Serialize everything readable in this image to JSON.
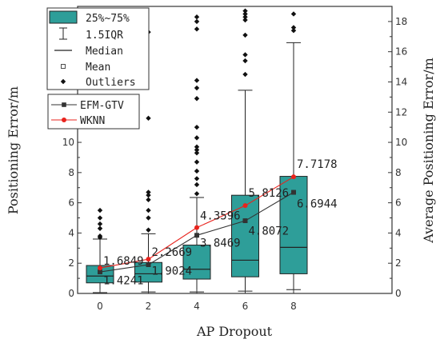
{
  "chart_data": {
    "type": "box",
    "xlabel": "AP Dropout",
    "ylabel_left": "Positioning Error/m",
    "ylabel_right": "Average Positioning Error/m",
    "categories": [
      "0",
      "2",
      "4",
      "6",
      "8"
    ],
    "ylim": [
      0,
      19
    ],
    "yticks": [
      "0",
      "2",
      "4",
      "6",
      "8",
      "10",
      "12",
      "14",
      "16",
      "18"
    ],
    "box_color": "#2E9E99",
    "boxes": [
      {
        "cat": "0",
        "whisker_low": 0.05,
        "q1": 0.7,
        "median": 1.15,
        "q3": 1.85,
        "whisker_high": 3.6,
        "mean": 1.42,
        "outliers": [
          3.7,
          3.8,
          4.3,
          4.6,
          5.0,
          5.5
        ]
      },
      {
        "cat": "2",
        "whisker_low": 0.1,
        "q1": 0.75,
        "median": 1.3,
        "q3": 2.05,
        "whisker_high": 3.95,
        "mean": 1.9,
        "outliers": [
          4.2,
          5.0,
          5.5,
          6.2,
          6.5,
          6.7,
          11.6,
          17.3
        ]
      },
      {
        "cat": "4",
        "whisker_low": 0.1,
        "q1": 0.95,
        "median": 1.6,
        "q3": 3.2,
        "whisker_high": 6.35,
        "mean": 3.85,
        "outliers": [
          6.6,
          7.2,
          7.6,
          8.1,
          8.7,
          9.3,
          9.5,
          9.7,
          10.3,
          11.0,
          12.9,
          13.6,
          14.1,
          17.5,
          18.0,
          18.3
        ]
      },
      {
        "cat": "6",
        "whisker_low": 0.15,
        "q1": 1.1,
        "median": 2.2,
        "q3": 6.5,
        "whisker_high": 13.45,
        "mean": 4.81,
        "outliers": [
          14.5,
          15.4,
          15.8,
          17.1,
          18.1,
          18.3,
          18.5,
          18.7
        ]
      },
      {
        "cat": "8",
        "whisker_low": 0.25,
        "q1": 1.3,
        "median": 3.05,
        "q3": 7.75,
        "whisker_high": 16.6,
        "mean": 6.69,
        "outliers": [
          17.4,
          17.6,
          18.5
        ]
      }
    ],
    "series": [
      {
        "name": "EFM-GTV",
        "color": "#333333",
        "marker": "square",
        "values": [
          1.4241,
          1.9024,
          3.8469,
          4.8072,
          6.6944
        ]
      },
      {
        "name": "WKNN",
        "color": "#E8231D",
        "marker": "circle",
        "values": [
          1.6849,
          2.2669,
          4.3596,
          5.8126,
          7.7178
        ]
      }
    ],
    "annotations": [
      {
        "text": "1.6849",
        "cat": 0,
        "y": 1.9
      },
      {
        "text": "1.4241",
        "cat": 0,
        "y": 0.6
      },
      {
        "text": "2.2669",
        "cat": 1,
        "y": 2.5
      },
      {
        "text": "1.9024",
        "cat": 1,
        "y": 1.25
      },
      {
        "text": "4.3596",
        "cat": 2,
        "y": 4.9
      },
      {
        "text": "3.8469",
        "cat": 2,
        "y": 3.1
      },
      {
        "text": "5.8126",
        "cat": 3,
        "y": 6.4
      },
      {
        "text": "4.8072",
        "cat": 3,
        "y": 3.9
      },
      {
        "text": "7.7178",
        "cat": 4,
        "y": 8.3
      },
      {
        "text": "6.6944",
        "cat": 4,
        "y": 5.7
      }
    ],
    "legend_box": {
      "entries": [
        "25%~75%",
        "1.5IQR",
        "Median",
        "Mean",
        "Outliers"
      ]
    }
  }
}
